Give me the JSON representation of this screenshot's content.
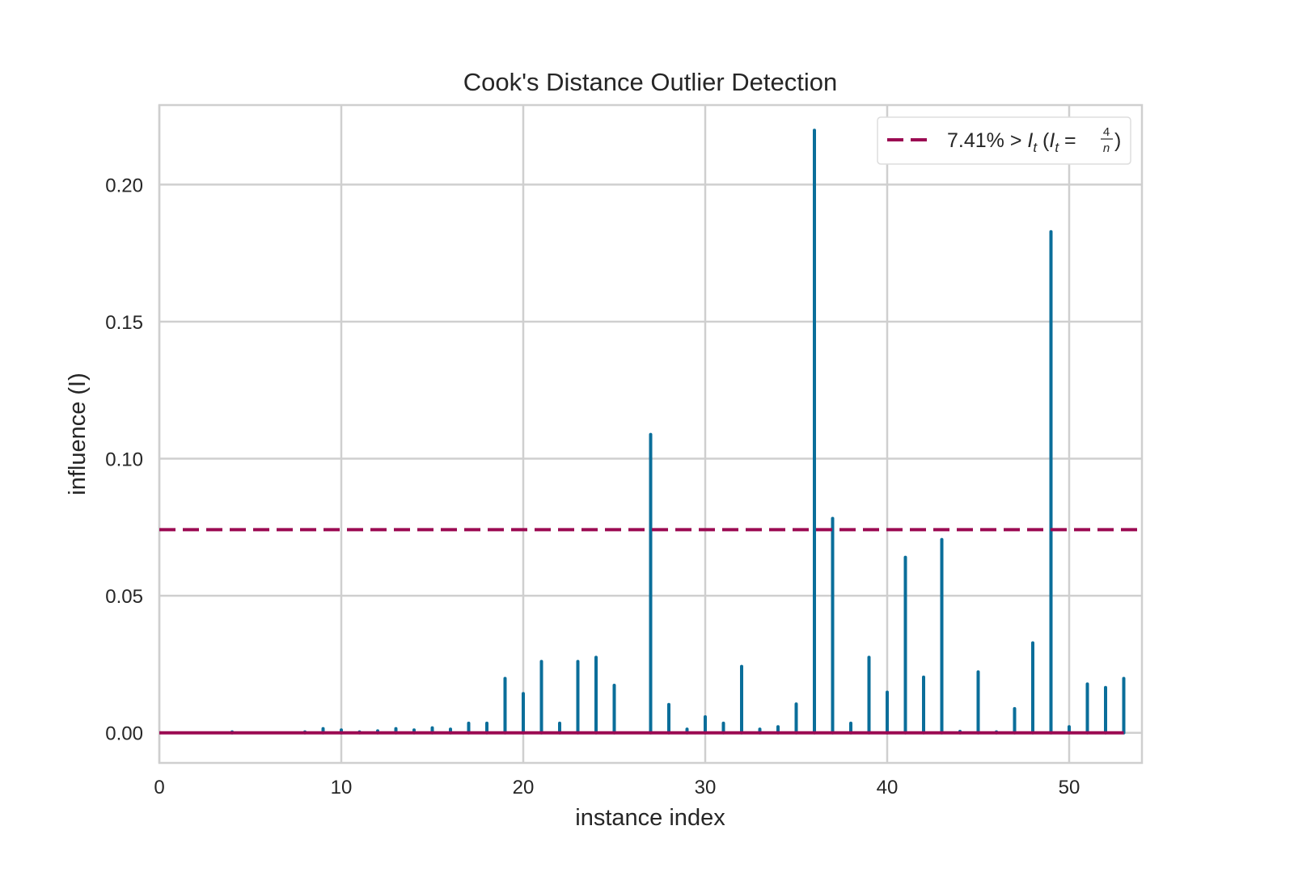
{
  "colors": {
    "stem": "#0a6e9a",
    "threshold": "#9b0a52",
    "grid": "#cfcfcf",
    "frame": "#cfcfcf",
    "text": "#262626",
    "background": "#ffffff"
  },
  "chart_data": {
    "type": "stem",
    "title": "Cook's Distance Outlier Detection",
    "xlabel": "instance index",
    "ylabel": "influence (I)",
    "xlim": [
      0,
      54
    ],
    "ylim": [
      -0.011,
      0.229
    ],
    "xticks": [
      0,
      10,
      20,
      30,
      40,
      50
    ],
    "xtick_labels": [
      "0",
      "10",
      "20",
      "30",
      "40",
      "50"
    ],
    "yticks": [
      0.0,
      0.05,
      0.1,
      0.15,
      0.2
    ],
    "ytick_labels": [
      "0.00",
      "0.05",
      "0.10",
      "0.15",
      "0.20"
    ],
    "grid": true,
    "legend": {
      "placement": "top-right",
      "label_main": "7.41% > ",
      "label_it": "I",
      "label_it_sub": "t",
      "label_paren_open": " (",
      "label_eq": " = ",
      "label_frac_num": "4",
      "label_frac_den": "n",
      "label_paren_close": ")"
    },
    "threshold": {
      "value": 0.0741,
      "style": "dashed"
    },
    "baseline": 0,
    "x": [
      0,
      1,
      2,
      3,
      4,
      5,
      6,
      7,
      8,
      9,
      10,
      11,
      12,
      13,
      14,
      15,
      16,
      17,
      18,
      19,
      20,
      21,
      22,
      23,
      24,
      25,
      26,
      27,
      28,
      29,
      30,
      31,
      32,
      33,
      34,
      35,
      36,
      37,
      38,
      39,
      40,
      41,
      42,
      43,
      44,
      45,
      46,
      47,
      48,
      49,
      50,
      51,
      52,
      53
    ],
    "values": [
      0.0,
      0.0,
      0.0,
      0.0,
      0.0003,
      0.0,
      0.0,
      0.0,
      0.0003,
      0.0015,
      0.001,
      0.0003,
      0.0007,
      0.0015,
      0.001,
      0.0018,
      0.0013,
      0.0035,
      0.0035,
      0.0198,
      0.0143,
      0.026,
      0.0035,
      0.026,
      0.0275,
      0.0173,
      0.0,
      0.1088,
      0.0103,
      0.0013,
      0.0058,
      0.0035,
      0.0242,
      0.0013,
      0.0022,
      0.0105,
      0.2198,
      0.0782,
      0.0035,
      0.0275,
      0.0148,
      0.064,
      0.0203,
      0.0705,
      0.0005,
      0.0222,
      0.0003,
      0.0088,
      0.0328,
      0.1828,
      0.0022,
      0.0178,
      0.0165,
      0.0198
    ]
  }
}
